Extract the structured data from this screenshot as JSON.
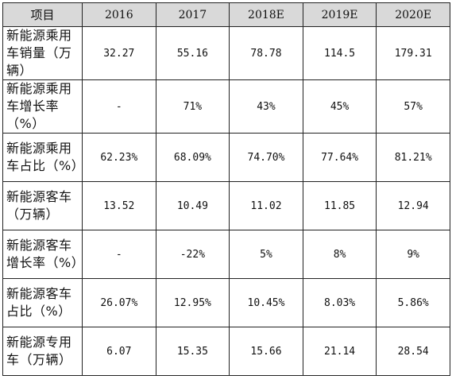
{
  "table": {
    "headers": [
      "项目",
      "2016",
      "2017",
      "2018E",
      "2019E",
      "2020E"
    ],
    "rows": [
      {
        "label": "新能源乘用车销量（万辆）",
        "values": [
          "32.27",
          "55.16",
          "78.78",
          "114.5",
          "179.31"
        ]
      },
      {
        "label": "新能源乘用车增长率（%）",
        "values": [
          "-",
          "71%",
          "43%",
          "45%",
          "57%"
        ]
      },
      {
        "label": "新能源乘用车占比（%）",
        "values": [
          "62.23%",
          "68.09%",
          "74.70%",
          "77.64%",
          "81.21%"
        ]
      },
      {
        "label": "新能源客车（万辆）",
        "values": [
          "13.52",
          "10.49",
          "11.02",
          "11.85",
          "12.94"
        ]
      },
      {
        "label": "新能源客车增长率（%）",
        "values": [
          "-",
          "-22%",
          "5%",
          "8%",
          "9%"
        ]
      },
      {
        "label": "新能源客车占比（%）",
        "values": [
          "26.07%",
          "12.95%",
          "10.45%",
          "8.03%",
          "5.86%"
        ]
      },
      {
        "label": "新能源专用车（万辆）",
        "values": [
          "6.07",
          "15.35",
          "15.66",
          "21.14",
          "28.54"
        ]
      }
    ]
  }
}
